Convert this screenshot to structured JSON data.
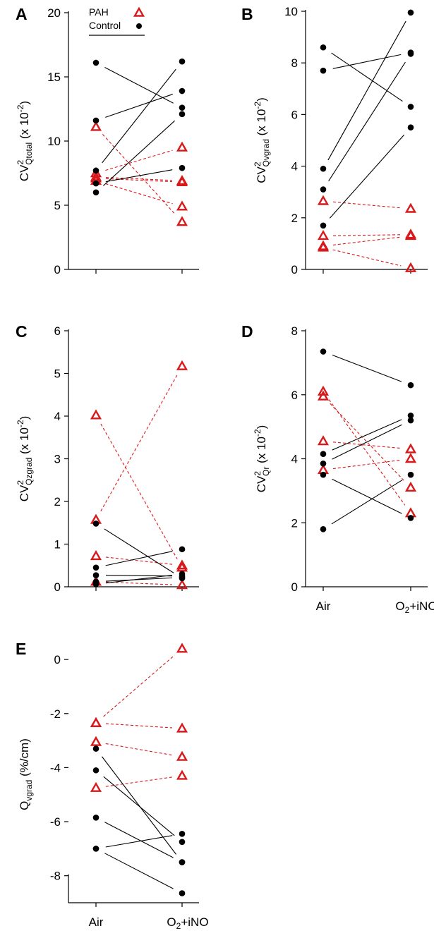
{
  "colors": {
    "pah": "#d7191c",
    "control": "#000000"
  },
  "legend": {
    "pah": "PAH",
    "control": "Control"
  },
  "categories": [
    "Air",
    "O2+iNO"
  ],
  "chart_data": [
    {
      "panel": "A",
      "type": "line",
      "ylabel": {
        "pre": "CV",
        "sup": "2",
        "sub": "Qtotal",
        "post": " (x 10",
        "exp": "-2",
        "end": ")"
      },
      "ylim": [
        0,
        20
      ],
      "yticks": [
        0,
        5,
        10,
        15,
        20
      ],
      "show_categories": false,
      "series": [
        {
          "name": "PAH",
          "pairs": [
            [
              11.1,
              3.7
            ],
            [
              7.5,
              9.5
            ],
            [
              7.1,
              6.8
            ],
            [
              6.9,
              4.9
            ],
            [
              7.2,
              6.9
            ]
          ]
        },
        {
          "name": "Control",
          "pairs": [
            [
              16.1,
              12.6
            ],
            [
              11.6,
              13.9
            ],
            [
              7.7,
              16.2
            ],
            [
              6.7,
              7.9
            ],
            [
              6.0,
              12.1
            ]
          ]
        }
      ]
    },
    {
      "panel": "B",
      "type": "line",
      "ylabel": {
        "pre": "CV",
        "sup": "2",
        "sub": "Qvgrad",
        "post": " (x 10",
        "exp": "-2",
        "end": ")"
      },
      "ylim": [
        0,
        10
      ],
      "yticks": [
        0,
        2,
        4,
        6,
        8,
        10
      ],
      "show_categories": false,
      "series": [
        {
          "name": "PAH",
          "pairs": [
            [
              2.65,
              2.35
            ],
            [
              1.3,
              1.35
            ],
            [
              0.9,
              1.3
            ],
            [
              0.85,
              0.05
            ]
          ]
        },
        {
          "name": "Control",
          "pairs": [
            [
              8.6,
              6.3
            ],
            [
              7.7,
              8.4
            ],
            [
              3.9,
              9.95
            ],
            [
              3.1,
              8.35
            ],
            [
              1.7,
              5.5
            ]
          ]
        }
      ]
    },
    {
      "panel": "C",
      "type": "line",
      "ylabel": {
        "pre": "CV",
        "sup": "2",
        "sub": "Qzgrad",
        "post": " (x 10",
        "exp": "-2",
        "end": ")"
      },
      "ylim": [
        0,
        6
      ],
      "yticks": [
        0,
        1,
        2,
        3,
        4,
        5,
        6
      ],
      "show_categories": false,
      "series": [
        {
          "name": "PAH",
          "pairs": [
            [
              4.02,
              0.45
            ],
            [
              1.57,
              5.17
            ],
            [
              0.72,
              0.5
            ],
            [
              0.12,
              0.04
            ]
          ]
        },
        {
          "name": "Control",
          "pairs": [
            [
              1.48,
              0.2
            ],
            [
              0.45,
              0.88
            ],
            [
              0.27,
              0.25
            ],
            [
              0.12,
              0.22
            ],
            [
              0.06,
              0.3
            ]
          ]
        }
      ]
    },
    {
      "panel": "D",
      "type": "line",
      "ylabel": {
        "pre": "CV",
        "sup": "2",
        "sub": "Qr",
        "post": "  (x 10",
        "exp": "-2",
        "end": ")"
      },
      "ylim": [
        0,
        8
      ],
      "yticks": [
        0,
        2,
        4,
        6,
        8
      ],
      "show_categories": true,
      "series": [
        {
          "name": "PAH",
          "pairs": [
            [
              6.1,
              2.3
            ],
            [
              5.95,
              3.1
            ],
            [
              4.55,
              4.3
            ],
            [
              3.65,
              4.0
            ]
          ]
        },
        {
          "name": "Control",
          "pairs": [
            [
              7.35,
              6.3
            ],
            [
              4.15,
              5.35
            ],
            [
              3.85,
              5.2
            ],
            [
              3.5,
              2.15
            ],
            [
              1.8,
              3.5
            ]
          ]
        }
      ]
    },
    {
      "panel": "E",
      "type": "line",
      "ylabel": {
        "pre": "Q",
        "sup": "",
        "sub": "vgrad",
        "post": " (%/cm)",
        "exp": "",
        "end": ""
      },
      "ylim": [
        -9,
        0.5
      ],
      "yticks": [
        0,
        -2,
        -4,
        -6,
        -8
      ],
      "show_categories": true,
      "series": [
        {
          "name": "PAH",
          "pairs": [
            [
              -2.35,
              0.4
            ],
            [
              -2.35,
              -2.55
            ],
            [
              -3.05,
              -3.6
            ],
            [
              -4.75,
              -4.3
            ]
          ]
        },
        {
          "name": "Control",
          "pairs": [
            [
              -3.3,
              -7.5
            ],
            [
              -4.1,
              -6.75
            ],
            [
              -5.85,
              -7.5
            ],
            [
              -7.0,
              -6.45
            ],
            [
              -7.0,
              -8.65
            ]
          ]
        }
      ]
    }
  ]
}
